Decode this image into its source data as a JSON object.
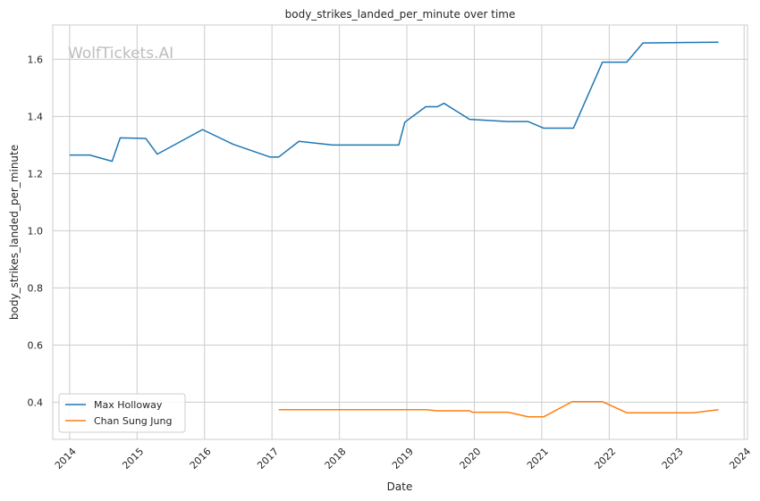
{
  "chart_data": {
    "type": "line",
    "title": "body_strikes_landed_per_minute over time",
    "xlabel": "Date",
    "ylabel": "body_strikes_landed_per_minute",
    "watermark": "WolfTickets.AI",
    "grid": true,
    "legend_position": "lower-left",
    "xlim": [
      2013.75,
      2024.05
    ],
    "ylim": [
      0.27,
      1.72
    ],
    "x_ticks": [
      2014,
      2015,
      2016,
      2017,
      2018,
      2019,
      2020,
      2021,
      2022,
      2023,
      2024
    ],
    "x_tick_labels": [
      "2014",
      "2015",
      "2016",
      "2017",
      "2018",
      "2019",
      "2020",
      "2021",
      "2022",
      "2023",
      "2024"
    ],
    "y_ticks": [
      0.4,
      0.6,
      0.8,
      1.0,
      1.2,
      1.4,
      1.6
    ],
    "y_tick_labels": [
      "0.4",
      "0.6",
      "0.8",
      "1.0",
      "1.2",
      "1.4",
      "1.6"
    ],
    "series": [
      {
        "name": "Max Holloway",
        "color": "#1f77b4",
        "x": [
          2014.0,
          2014.3,
          2014.63,
          2014.75,
          2015.13,
          2015.3,
          2015.97,
          2016.42,
          2016.97,
          2017.1,
          2017.4,
          2017.9,
          2018.38,
          2018.88,
          2018.97,
          2019.28,
          2019.45,
          2019.55,
          2019.93,
          2020.5,
          2020.8,
          2021.03,
          2021.47,
          2021.9,
          2022.26,
          2022.5,
          2023.62
        ],
        "y": [
          1.265,
          1.265,
          1.243,
          1.325,
          1.323,
          1.268,
          1.354,
          1.303,
          1.258,
          1.258,
          1.313,
          1.3,
          1.3,
          1.3,
          1.38,
          1.434,
          1.434,
          1.446,
          1.39,
          1.382,
          1.382,
          1.359,
          1.359,
          1.59,
          1.59,
          1.657,
          1.66
        ]
      },
      {
        "name": "Chan Sung Jung",
        "color": "#ff7f0e",
        "x": [
          2017.1,
          2019.28,
          2019.45,
          2019.93,
          2019.97,
          2020.5,
          2020.8,
          2021.03,
          2021.45,
          2021.9,
          2022.26,
          2023.25,
          2023.62
        ],
        "y": [
          0.374,
          0.374,
          0.37,
          0.37,
          0.365,
          0.365,
          0.349,
          0.349,
          0.402,
          0.402,
          0.363,
          0.363,
          0.374
        ]
      }
    ]
  }
}
